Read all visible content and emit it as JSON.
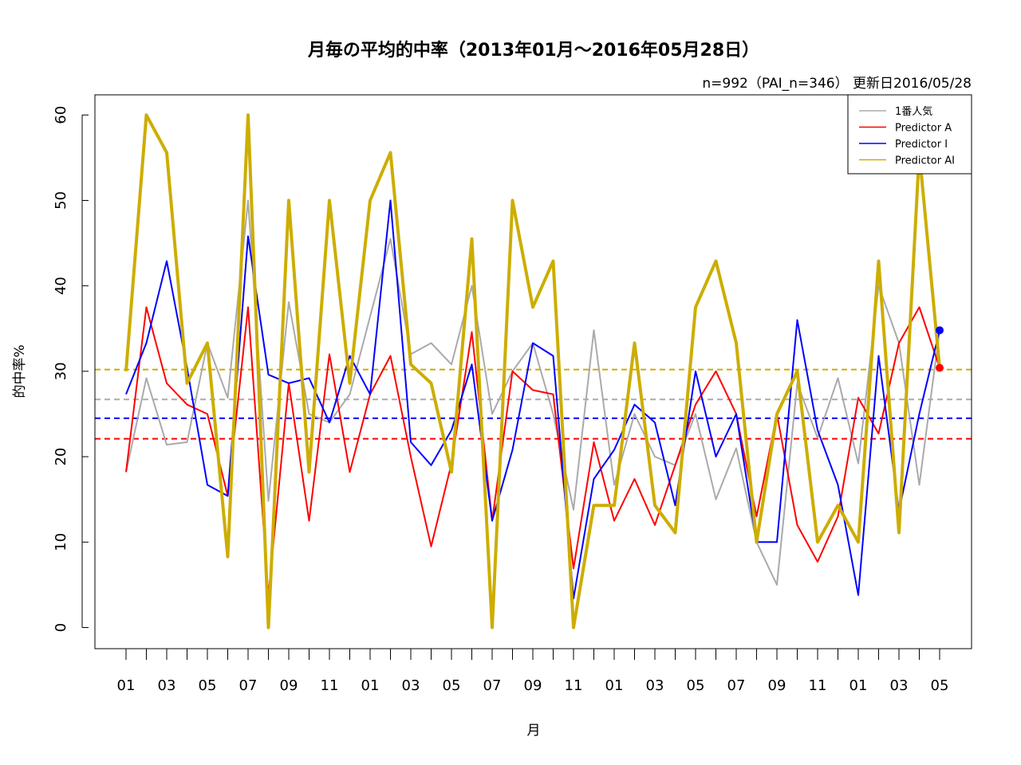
{
  "chart_data": {
    "type": "line",
    "title": "月毎の平均的中率（2013年01月～2016年05月28日）",
    "subtitle": "n=992（PAI_n=346） 更新日2016/05/28",
    "xlabel": "月",
    "ylabel": "的中率%",
    "ylim": [
      0,
      60
    ],
    "yticks": [
      0,
      10,
      20,
      30,
      40,
      50,
      60
    ],
    "grid": false,
    "legend_position": "top-right",
    "x_tick_labels": [
      "01",
      "03",
      "05",
      "07",
      "09",
      "11",
      "01",
      "03",
      "05",
      "07",
      "09",
      "11",
      "01",
      "03",
      "05",
      "07",
      "09",
      "11",
      "01",
      "03",
      "05"
    ],
    "series": [
      {
        "name": "1番人気",
        "color": "#aaaaaa",
        "width": 2,
        "mean": 26.7,
        "values": [
          18.2,
          29.2,
          21.4,
          21.7,
          33.3,
          26.9,
          50.0,
          14.8,
          38.1,
          25.0,
          24.0,
          27.3,
          36.4,
          45.5,
          32.0,
          33.3,
          30.8,
          40.0,
          25.0,
          30.0,
          33.3,
          25.0,
          13.8,
          34.8,
          16.7,
          25.0,
          20.0,
          19.0,
          25.0,
          15.0,
          21.0,
          10.0,
          5.0,
          28.6,
          22.2,
          29.2,
          19.2,
          40.0,
          33.3,
          16.7,
          34.8
        ]
      },
      {
        "name": "Predictor A",
        "color": "#ff0000",
        "width": 2,
        "mean": 22.1,
        "values": [
          18.2,
          37.5,
          28.6,
          26.1,
          25.0,
          15.4,
          37.5,
          3.7,
          28.6,
          12.5,
          32.0,
          18.2,
          27.3,
          31.8,
          20.0,
          9.5,
          19.2,
          34.6,
          12.5,
          30.0,
          27.8,
          27.3,
          6.9,
          21.7,
          12.5,
          17.4,
          12.0,
          19.0,
          26.1,
          30.0,
          25.0,
          13.0,
          25.0,
          12.0,
          7.7,
          13.0,
          26.9,
          22.7,
          33.3,
          37.5,
          30.4
        ]
      },
      {
        "name": "Predictor I",
        "color": "#0000ff",
        "width": 2,
        "mean": 24.5,
        "values": [
          27.3,
          33.3,
          42.9,
          30.4,
          16.7,
          15.4,
          45.8,
          29.6,
          28.6,
          29.2,
          24.0,
          31.8,
          27.3,
          50.0,
          21.7,
          19.0,
          23.1,
          30.8,
          12.5,
          20.8,
          33.3,
          31.8,
          3.4,
          17.4,
          20.8,
          26.1,
          24.0,
          14.3,
          30.0,
          20.0,
          25.0,
          10.0,
          10.0,
          36.0,
          23.1,
          16.7,
          3.8,
          31.8,
          13.6,
          25.0,
          34.8
        ]
      },
      {
        "name": "Predictor AI",
        "color": "#cdad00",
        "width": 4,
        "mean": 30.2,
        "values": [
          30.0,
          60.0,
          55.6,
          28.6,
          33.3,
          8.3,
          60.0,
          0.0,
          50.0,
          18.2,
          50.0,
          28.6,
          50.0,
          55.6,
          30.8,
          28.6,
          18.2,
          45.5,
          0.0,
          50.0,
          37.5,
          42.9,
          0.0,
          14.3,
          14.3,
          33.3,
          14.3,
          11.1,
          37.5,
          42.9,
          33.3,
          10.0,
          25.0,
          30.0,
          10.0,
          14.3,
          10.0,
          42.9,
          11.1,
          55.6,
          30.4
        ]
      }
    ],
    "end_points": [
      {
        "series": "Predictor I",
        "value": 34.8,
        "color": "#0000ff"
      },
      {
        "series": "Predictor A",
        "value": 30.4,
        "color": "#ff0000"
      }
    ]
  }
}
